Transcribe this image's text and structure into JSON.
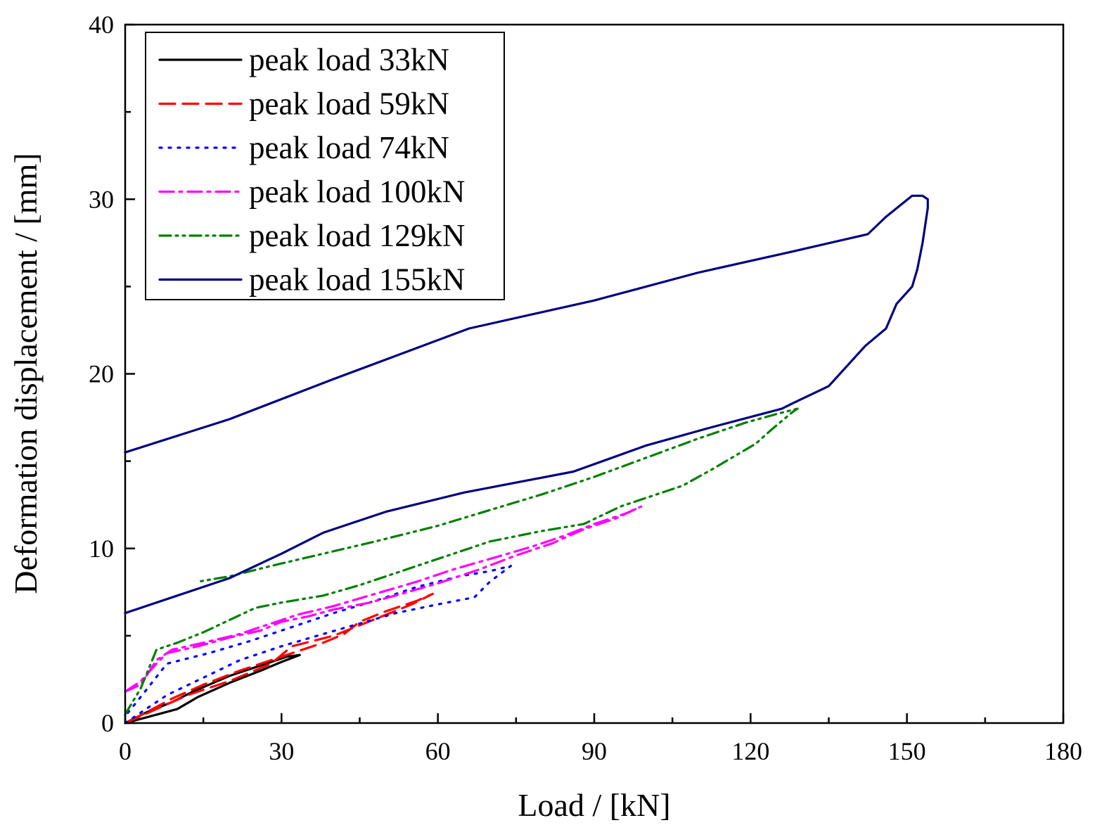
{
  "chart_data": {
    "type": "line",
    "title": "",
    "xlabel": "Load / [kN]",
    "ylabel": "Deformation displacement / [mm]",
    "xlim": [
      0,
      180
    ],
    "ylim": [
      0,
      40
    ],
    "xticks": [
      0,
      30,
      60,
      90,
      120,
      150,
      180
    ],
    "yticks": [
      0,
      10,
      20,
      30,
      40
    ],
    "grid": false,
    "legend_position": "top-left",
    "series": [
      {
        "name": "peak load 33kN",
        "color": "#000000",
        "style": "solid",
        "points": [
          [
            0,
            0
          ],
          [
            5,
            0.4
          ],
          [
            10,
            0.8
          ],
          [
            14,
            1.5
          ],
          [
            20,
            2.3
          ],
          [
            26,
            3.0
          ],
          [
            30,
            3.5
          ],
          [
            33.5,
            3.9
          ],
          [
            31,
            3.8
          ],
          [
            26,
            3.3
          ],
          [
            20,
            2.7
          ],
          [
            13,
            1.8
          ],
          [
            9,
            1.2
          ],
          [
            4,
            0.6
          ],
          [
            0,
            0
          ]
        ]
      },
      {
        "name": "peak load 59kN",
        "color": "#ff0000",
        "style": "dashed",
        "points": [
          [
            0,
            0
          ],
          [
            6,
            0.8
          ],
          [
            12,
            1.6
          ],
          [
            20,
            2.4
          ],
          [
            28,
            3.4
          ],
          [
            32,
            4.4
          ],
          [
            36,
            4.7
          ],
          [
            40,
            5.0
          ],
          [
            45,
            5.6
          ],
          [
            50,
            6.2
          ],
          [
            55,
            6.8
          ],
          [
            59,
            7.4
          ],
          [
            56,
            7.0
          ],
          [
            50,
            6.4
          ],
          [
            45,
            5.8
          ],
          [
            42,
            5.1
          ],
          [
            38,
            4.6
          ],
          [
            30,
            3.8
          ],
          [
            22,
            3.0
          ],
          [
            15,
            2.2
          ],
          [
            9,
            1.4
          ],
          [
            4,
            0.6
          ],
          [
            0,
            0
          ]
        ]
      },
      {
        "name": "peak load 74kN",
        "color": "#0000ff",
        "style": "dotted",
        "points": [
          [
            0,
            0
          ],
          [
            4,
            0.8
          ],
          [
            8,
            1.6
          ],
          [
            15,
            2.6
          ],
          [
            22,
            3.6
          ],
          [
            30,
            4.4
          ],
          [
            38,
            5.1
          ],
          [
            45,
            5.7
          ],
          [
            52,
            6.3
          ],
          [
            60,
            6.8
          ],
          [
            67,
            7.2
          ],
          [
            70,
            8.1
          ],
          [
            74,
            9.0
          ],
          [
            70,
            8.7
          ],
          [
            64,
            8.4
          ],
          [
            56,
            7.8
          ],
          [
            48,
            7.0
          ],
          [
            40,
            6.3
          ],
          [
            32,
            5.5
          ],
          [
            24,
            4.7
          ],
          [
            16,
            4.0
          ],
          [
            8,
            3.4
          ],
          [
            3,
            1.5
          ],
          [
            0,
            0.4
          ]
        ]
      },
      {
        "name": "peak load 100kN",
        "color": "#ff00ff",
        "style": "dashdot",
        "points": [
          [
            0,
            1.8
          ],
          [
            3,
            2.4
          ],
          [
            6,
            3.4
          ],
          [
            8,
            4.0
          ],
          [
            14,
            4.4
          ],
          [
            20,
            4.9
          ],
          [
            26,
            5.3
          ],
          [
            30,
            5.8
          ],
          [
            35,
            6.1
          ],
          [
            40,
            6.5
          ],
          [
            47,
            6.9
          ],
          [
            53,
            7.4
          ],
          [
            60,
            8.0
          ],
          [
            68,
            8.8
          ],
          [
            75,
            9.6
          ],
          [
            82,
            10.3
          ],
          [
            88,
            11.1
          ],
          [
            94,
            11.7
          ],
          [
            99,
            12.4
          ],
          [
            96,
            12.0
          ],
          [
            90,
            11.4
          ],
          [
            84,
            10.7
          ],
          [
            78,
            10.1
          ],
          [
            70,
            9.4
          ],
          [
            63,
            8.8
          ],
          [
            56,
            8.1
          ],
          [
            48,
            7.4
          ],
          [
            40,
            6.7
          ],
          [
            33,
            6.2
          ],
          [
            28,
            5.7
          ],
          [
            22,
            5.1
          ],
          [
            15,
            4.6
          ],
          [
            9,
            4.2
          ],
          [
            6,
            3.6
          ],
          [
            3,
            2.2
          ],
          [
            0,
            1.8
          ]
        ]
      },
      {
        "name": "peak load 129kN",
        "color": "#008000",
        "style": "dashdotdot",
        "points": [
          [
            0,
            0.5
          ],
          [
            3,
            2.0
          ],
          [
            6,
            4.2
          ],
          [
            10,
            4.6
          ],
          [
            15,
            5.2
          ],
          [
            20,
            5.9
          ],
          [
            25,
            6.6
          ],
          [
            30,
            6.9
          ],
          [
            38,
            7.3
          ],
          [
            45,
            7.9
          ],
          [
            52,
            8.6
          ],
          [
            60,
            9.4
          ],
          [
            70,
            10.4
          ],
          [
            80,
            11.0
          ],
          [
            88,
            11.4
          ],
          [
            95,
            12.4
          ],
          [
            100,
            12.9
          ],
          [
            107,
            13.6
          ],
          [
            113,
            14.6
          ],
          [
            117,
            15.3
          ],
          [
            121,
            16.0
          ],
          [
            124,
            16.8
          ],
          [
            126,
            17.3
          ],
          [
            128,
            17.8
          ],
          [
            129,
            18.0
          ],
          [
            125,
            17.7
          ],
          [
            119,
            17.2
          ],
          [
            110,
            16.3
          ],
          [
            100,
            15.2
          ],
          [
            90,
            14.1
          ],
          [
            80,
            13.1
          ],
          [
            70,
            12.2
          ],
          [
            60,
            11.3
          ],
          [
            48,
            10.4
          ],
          [
            38,
            9.7
          ],
          [
            28,
            9.0
          ],
          [
            20,
            8.4
          ],
          [
            14,
            8.1
          ]
        ]
      },
      {
        "name": "peak load 155kN",
        "color": "#000080",
        "style": "solid",
        "points": [
          [
            0,
            6.3
          ],
          [
            10,
            7.3
          ],
          [
            20,
            8.3
          ],
          [
            30,
            9.7
          ],
          [
            38,
            10.9
          ],
          [
            50,
            12.1
          ],
          [
            65,
            13.2
          ],
          [
            86,
            14.4
          ],
          [
            100,
            15.9
          ],
          [
            112,
            16.9
          ],
          [
            126,
            18.0
          ],
          [
            128,
            18.3
          ],
          [
            135,
            19.3
          ],
          [
            142,
            21.6
          ],
          [
            146,
            22.6
          ],
          [
            148,
            24.0
          ],
          [
            151,
            25.0
          ],
          [
            152,
            26.0
          ],
          [
            153,
            27.5
          ],
          [
            154,
            29.5
          ],
          [
            154,
            30.0
          ],
          [
            153,
            30.2
          ],
          [
            151,
            30.2
          ],
          [
            146,
            29.0
          ],
          [
            142.5,
            28.0
          ],
          [
            128,
            27.0
          ],
          [
            110,
            25.8
          ],
          [
            90,
            24.2
          ],
          [
            66,
            22.6
          ],
          [
            40,
            19.7
          ],
          [
            20,
            17.4
          ],
          [
            0,
            15.5
          ]
        ]
      }
    ]
  }
}
